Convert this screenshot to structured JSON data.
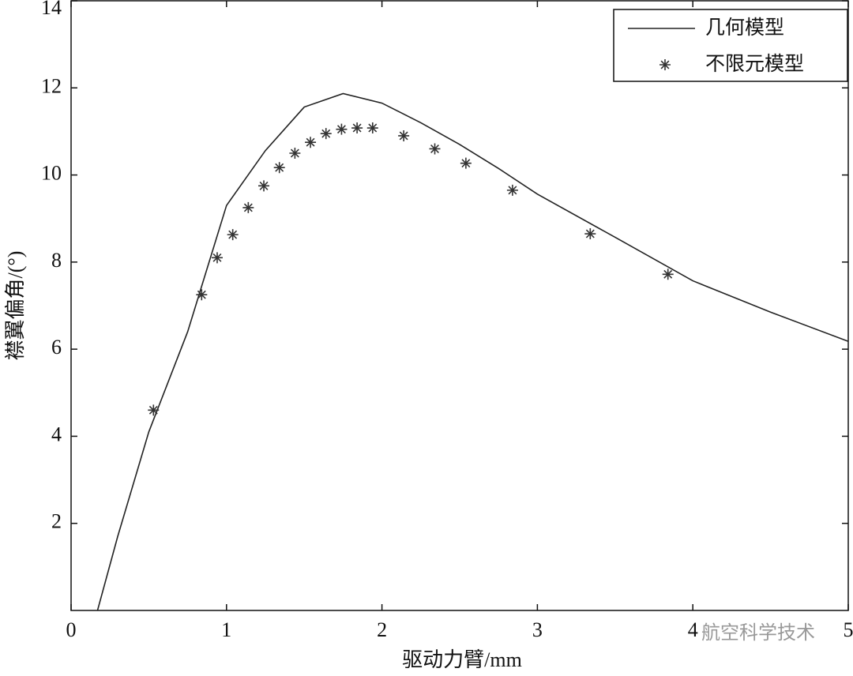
{
  "chart_data": {
    "type": "line",
    "x_label": "驱动力臂/mm",
    "y_label": "襟翼偏角/(°)",
    "xlim": [
      0,
      5
    ],
    "xticks": [
      0,
      1,
      2,
      3,
      4,
      5
    ],
    "ylim": [
      0,
      14
    ],
    "yticks": [
      2,
      4,
      6,
      8,
      10,
      12,
      14
    ],
    "legend": "upper right",
    "series": [
      {
        "name": "几何模型",
        "color": "#222222",
        "style": "line",
        "x": [
          0.17,
          0.3,
          0.5,
          0.75,
          1.0,
          1.25,
          1.5,
          1.75,
          2.0,
          2.25,
          2.5,
          2.75,
          3.0,
          3.5,
          4.0,
          4.5,
          5.0
        ],
        "values": [
          0,
          1.7,
          4.1,
          6.4,
          9.3,
          10.56,
          11.56,
          11.87,
          11.65,
          11.2,
          10.7,
          10.15,
          9.56,
          8.57,
          7.57,
          6.85,
          6.18
        ]
      },
      {
        "name": "不限元模型",
        "color": "#333333",
        "style": "marker",
        "x": [
          0.53,
          0.84,
          0.94,
          1.04,
          1.14,
          1.24,
          1.34,
          1.44,
          1.54,
          1.64,
          1.74,
          1.84,
          1.94,
          2.14,
          2.34,
          2.54,
          2.84,
          3.34,
          3.84
        ],
        "values": [
          4.6,
          7.25,
          8.1,
          8.63,
          9.25,
          9.75,
          10.17,
          10.5,
          10.75,
          10.95,
          11.05,
          11.08,
          11.08,
          10.9,
          10.6,
          10.27,
          9.65,
          8.65,
          7.72
        ]
      }
    ],
    "watermark": "航空科学技术"
  }
}
